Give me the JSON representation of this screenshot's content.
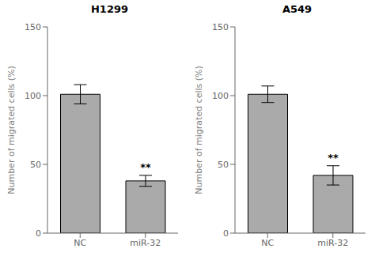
{
  "chart_data": [
    {
      "type": "bar",
      "title": "H1299",
      "categories": [
        "NC",
        "miR-32"
      ],
      "values": [
        101,
        38
      ],
      "errors": [
        7,
        4
      ],
      "color": "#aaaaaa",
      "ylabel": "Number of migrated cells (%)",
      "ylim": [
        0,
        150
      ],
      "yticks": [
        0,
        50,
        100,
        150
      ],
      "grid": false,
      "annotations": [
        {
          "text": "**",
          "category": "miR-32"
        }
      ]
    },
    {
      "type": "bar",
      "title": "A549",
      "categories": [
        "NC",
        "miR-32"
      ],
      "values": [
        101,
        42
      ],
      "errors": [
        6,
        7
      ],
      "color": "#aaaaaa",
      "ylabel": "Number of migrated cells (%)",
      "ylim": [
        0,
        150
      ],
      "yticks": [
        0,
        50,
        100,
        150
      ],
      "grid": false,
      "annotations": [
        {
          "text": "**",
          "category": "miR-32"
        }
      ]
    }
  ]
}
